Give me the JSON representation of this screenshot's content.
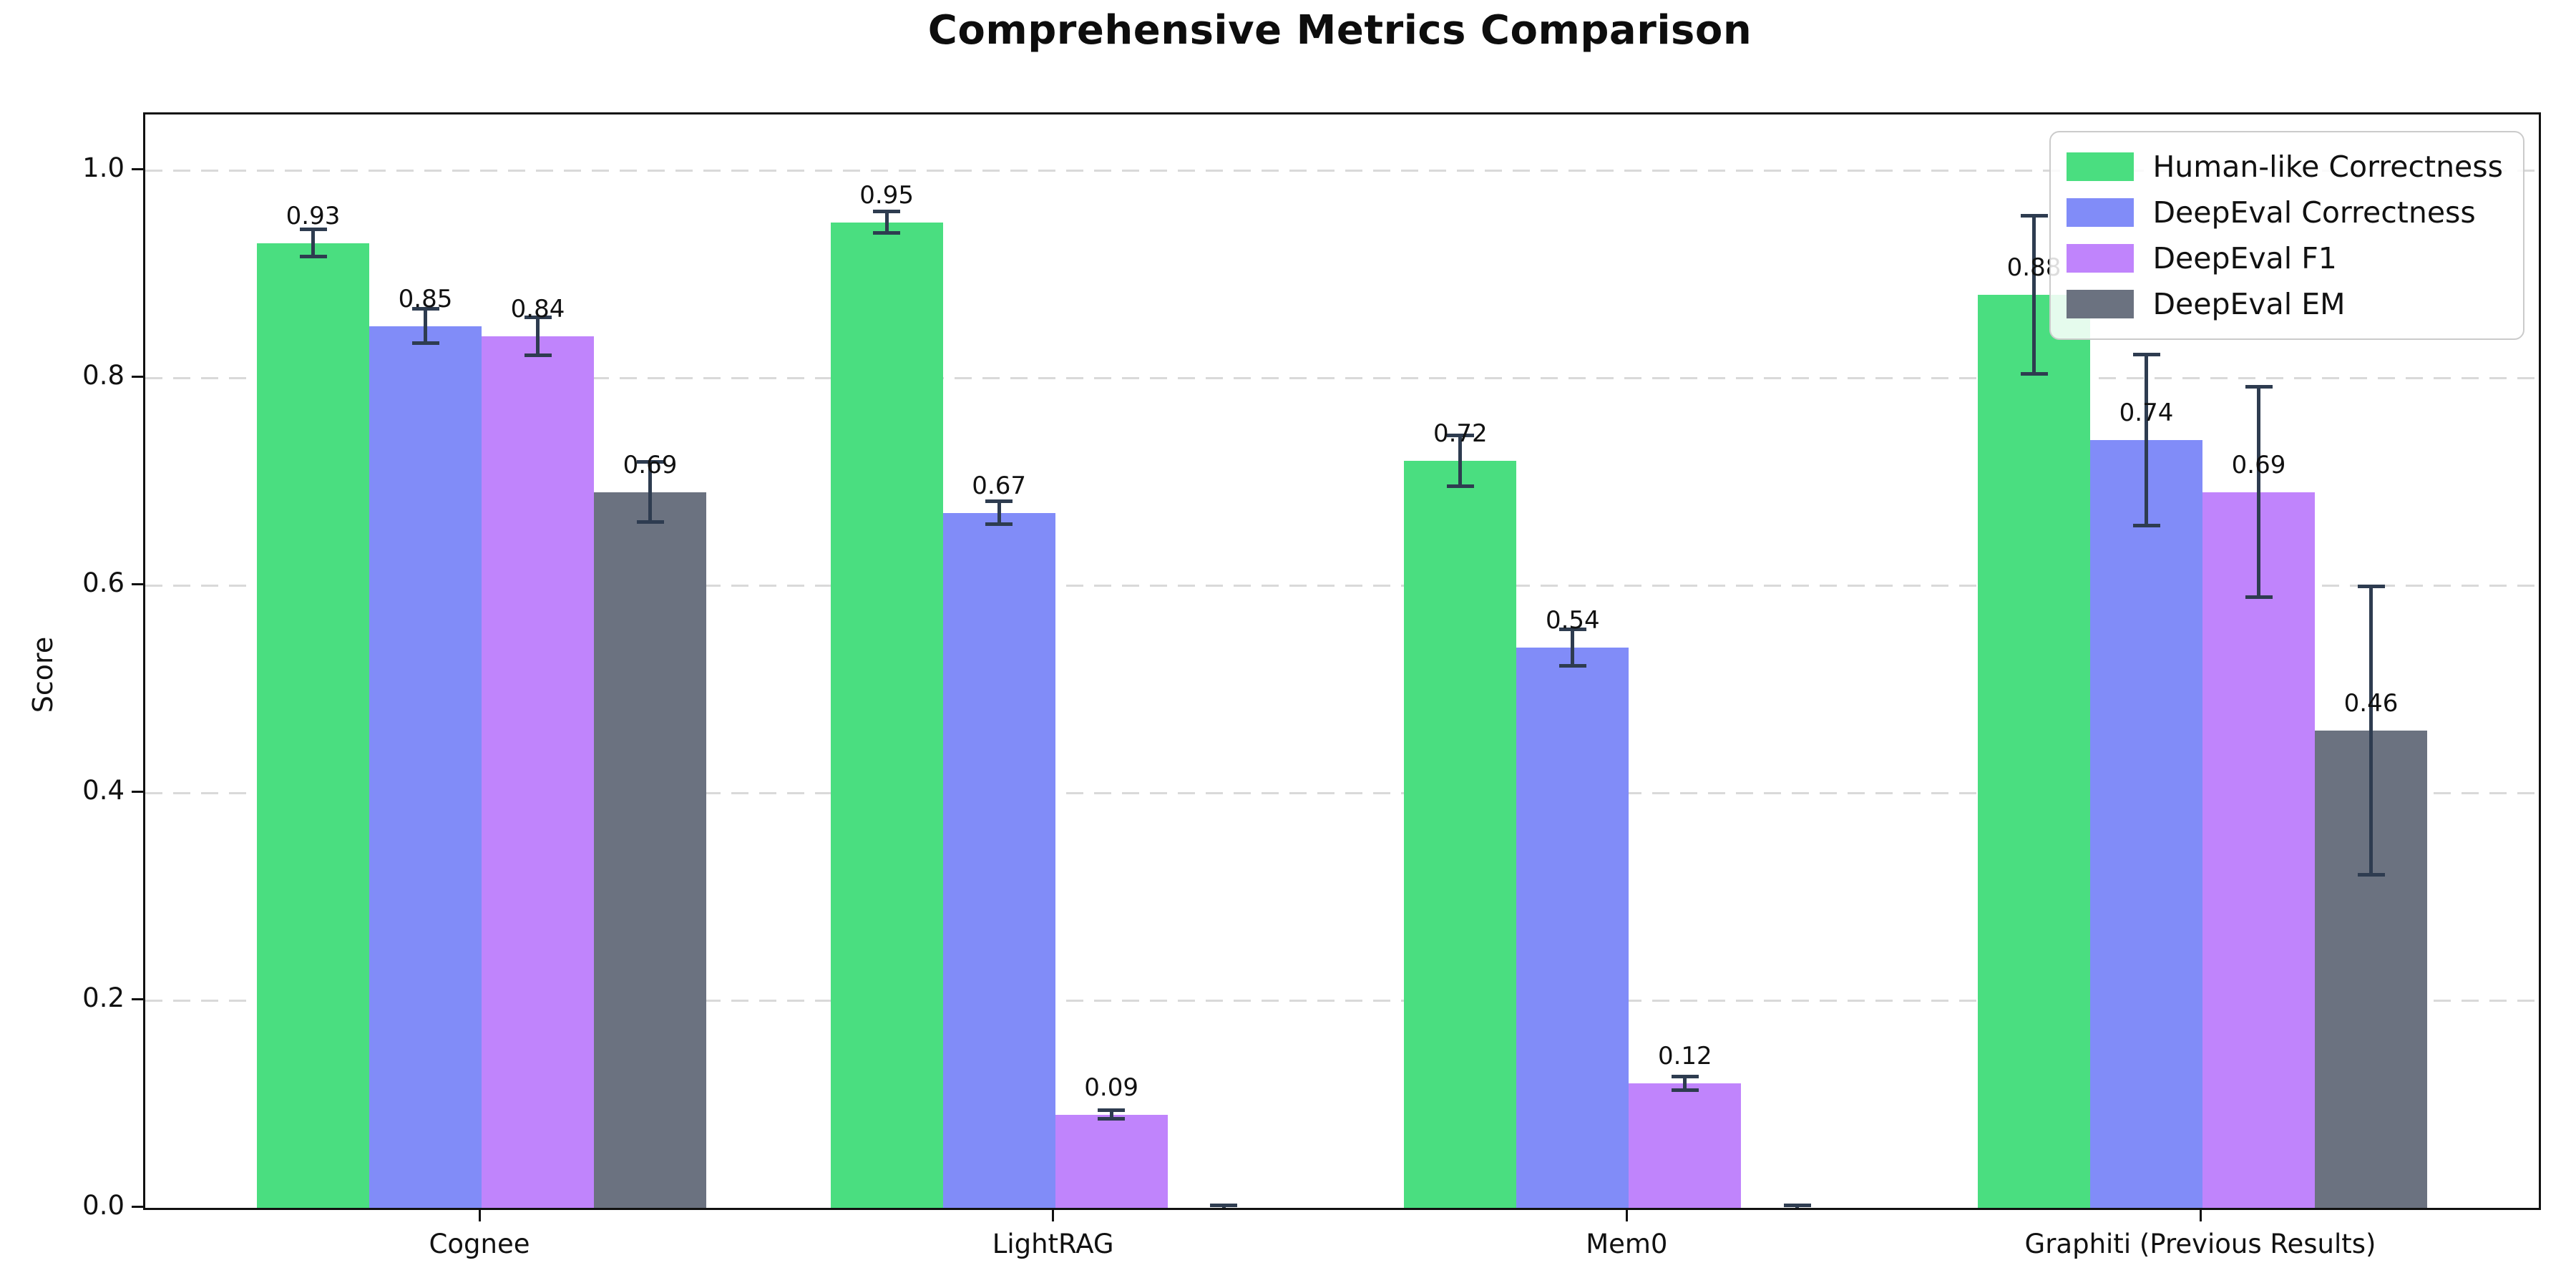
{
  "chart_data": {
    "type": "bar",
    "title": "Comprehensive Metrics Comparison",
    "ylabel": "Score",
    "xlabel": "",
    "categories": [
      "Cognee",
      "LightRAG",
      "Mem0",
      "Graphiti (Previous Results)"
    ],
    "series": [
      {
        "name": "Human-like Correctness",
        "color": "#4ade80",
        "values": [
          0.93,
          0.95,
          0.72,
          0.88
        ],
        "errors": [
          0.015,
          0.012,
          0.026,
          0.078
        ],
        "labels": [
          "0.93",
          "0.95",
          "0.72",
          "0.88"
        ]
      },
      {
        "name": "DeepEval Correctness",
        "color": "#818cf8",
        "values": [
          0.85,
          0.67,
          0.54,
          0.74
        ],
        "errors": [
          0.018,
          0.013,
          0.019,
          0.084
        ],
        "labels": [
          "0.85",
          "0.67",
          "0.54",
          "0.74"
        ]
      },
      {
        "name": "DeepEval F1",
        "color": "#c084fc",
        "values": [
          0.84,
          0.09,
          0.12,
          0.69
        ],
        "errors": [
          0.02,
          0.006,
          0.008,
          0.103
        ],
        "labels": [
          "0.84",
          "0.09",
          "0.12",
          "0.69"
        ]
      },
      {
        "name": "DeepEval EM",
        "color": "#6b7280",
        "values": [
          0.69,
          0.0,
          0.0,
          0.46
        ],
        "errors": [
          0.031,
          0.004,
          0.004,
          0.141
        ],
        "labels": [
          "0.69",
          "",
          "",
          "0.46"
        ]
      }
    ],
    "yticks": [
      "0.0",
      "0.2",
      "0.4",
      "0.6",
      "0.8",
      "1.0"
    ],
    "ylim": [
      0,
      1.054
    ],
    "grid": "horizontal-dashed",
    "legend_position": "top-right",
    "error_bar_color": "#2e3c50",
    "grid_color": "#d9d9d9",
    "axis_color": "#111111"
  }
}
